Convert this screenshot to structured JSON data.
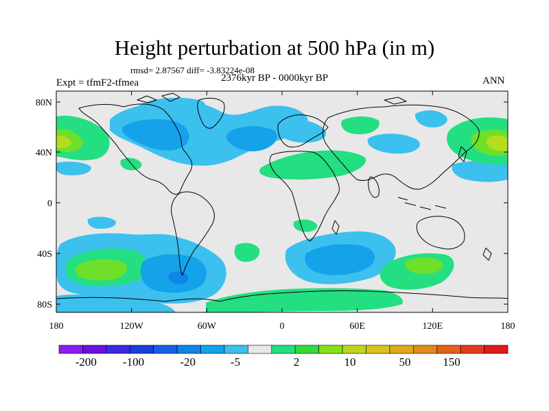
{
  "title": "Height perturbation at 500 hPa (in m)",
  "stats": "rmsd= 2.87567 diff= -3.83224e-08",
  "experiment": "Expt = tfmF2-tfmea",
  "period": "2376kyr BP - 0000kyr BP",
  "season": "ANN",
  "lat_labels": [
    "80N",
    "40N",
    "0",
    "40S",
    "80S"
  ],
  "lon_labels": [
    "180",
    "120W",
    "60W",
    "0",
    "60E",
    "120E",
    "180"
  ],
  "colorbar": {
    "labels": [
      "-200",
      "-100",
      "-20",
      "-5",
      "2",
      "10",
      "50",
      "150"
    ],
    "colors": [
      "#8a1cf0",
      "#6a10e0",
      "#3a2ae0",
      "#1a3ed8",
      "#1360e0",
      "#0f84e6",
      "#14a2e8",
      "#3cc0ee",
      "#e8e8e8",
      "#24de82",
      "#38d838",
      "#86e01a",
      "#bcd61e",
      "#d8c21e",
      "#dca81e",
      "#e08a1e",
      "#e2601c",
      "#e23a1c",
      "#e01a1a"
    ]
  },
  "field_colors": {
    "ocean_land_background": "#e8e8e8",
    "light_negative": "#3cc0ee",
    "medium_negative": "#14a2e8",
    "strong_negative": "#0f84e6",
    "light_positive": "#24de82",
    "medium_positive": "#6ee02a",
    "strong_positive": "#b4dc20"
  }
}
